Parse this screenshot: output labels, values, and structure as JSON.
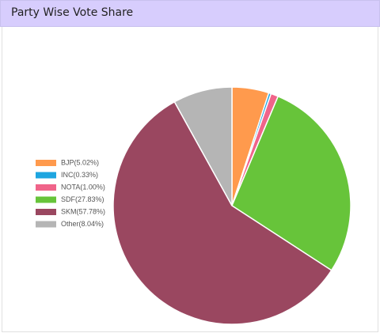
{
  "chart_data": {
    "type": "pie",
    "title": "Party Wise Vote Share",
    "categories": [
      "BJP(5.02%)",
      "INC(0.33%)",
      "NOTA(1.00%)",
      "SDF(27.83%)",
      "SKM(57.78%)",
      "Other(8.04%)"
    ],
    "values": [
      5.02,
      0.33,
      1.0,
      27.83,
      57.78,
      8.04
    ],
    "colors": [
      "#ff9a4d",
      "#1ea5e0",
      "#f0648a",
      "#67c43a",
      "#9a4760",
      "#b5b5b5"
    ],
    "legend": "left"
  }
}
